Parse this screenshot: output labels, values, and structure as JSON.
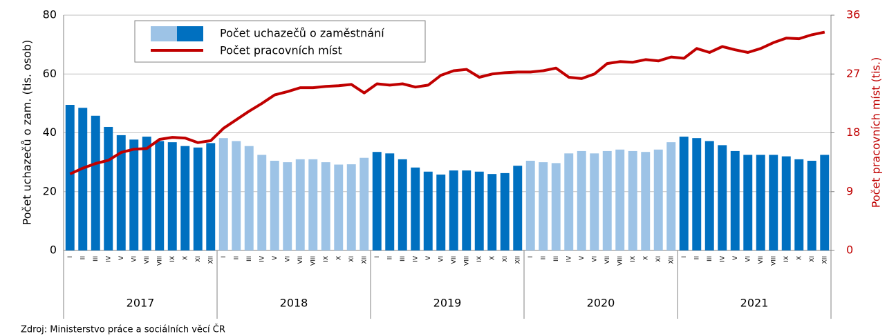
{
  "chart_data": {
    "type": "bar_line",
    "ylabel": "Počet uchazečů o zam. (tis. osob)",
    "y2label": "Počet pracovních míst (tis.)",
    "source": "Zdroj: Ministerstvo práce a sociálních věcí ČR",
    "categories": [
      "I",
      "II",
      "III",
      "IV",
      "V",
      "VI",
      "VII",
      "VIII",
      "IX",
      "X",
      "XI",
      "XII",
      "I",
      "II",
      "III",
      "IV",
      "V",
      "VI",
      "VII",
      "VIII",
      "IX",
      "X",
      "XI",
      "XII",
      "I",
      "II",
      "III",
      "IV",
      "V",
      "VI",
      "VII",
      "VIII",
      "IX",
      "X",
      "XI",
      "XII",
      "I",
      "II",
      "III",
      "IV",
      "V",
      "VI",
      "VII",
      "VIII",
      "IX",
      "X",
      "XI",
      "XII",
      "I",
      "II",
      "III",
      "IV",
      "V",
      "VI",
      "VII",
      "VIII",
      "IX",
      "X",
      "XI",
      "XII"
    ],
    "groups": [
      "2017",
      "2018",
      "2019",
      "2020",
      "2021"
    ],
    "series": [
      {
        "name": "Počet uchazečů o zaměstnání",
        "type": "bar",
        "color": "#0070c0",
        "alt_color": "#9dc3e6",
        "values": [
          49.5,
          48.5,
          45.8,
          42,
          39.2,
          37.7,
          38.7,
          37.2,
          36.8,
          35.5,
          35,
          36.5,
          38.2,
          37.2,
          35.5,
          32.5,
          30.5,
          30,
          31,
          31,
          30,
          29.2,
          29.3,
          31.5,
          33.5,
          33,
          31,
          28.2,
          26.8,
          25.8,
          27.2,
          27.2,
          26.8,
          26,
          26.3,
          28.8,
          30.5,
          30,
          29.7,
          33,
          33.8,
          33,
          33.8,
          34.3,
          33.8,
          33.5,
          34.3,
          36.8,
          38.7,
          38.2,
          37.2,
          35.8,
          33.8,
          32.5,
          32.5,
          32.5,
          32,
          31,
          30.5,
          32.5
        ]
      },
      {
        "name": "Počet pracovních míst",
        "type": "line",
        "color": "#c00000",
        "axis": "y2",
        "values": [
          11.7,
          12.6,
          13.3,
          13.8,
          15,
          15.5,
          15.6,
          17,
          17.3,
          17.2,
          16.5,
          16.8,
          18.7,
          20,
          21.3,
          22.5,
          23.8,
          24.3,
          24.9,
          24.9,
          25.1,
          25.2,
          25.4,
          24.1,
          25.5,
          25.3,
          25.5,
          25,
          25.3,
          26.8,
          27.5,
          27.7,
          26.5,
          27,
          27.2,
          27.3,
          27.3,
          27.5,
          27.9,
          26.5,
          26.3,
          27,
          28.6,
          28.9,
          28.8,
          29.2,
          29,
          29.6,
          29.4,
          30.9,
          30.3,
          31.2,
          30.7,
          30.3,
          30.9,
          31.8,
          32.5,
          32.4,
          33,
          33.4
        ]
      }
    ],
    "ylim": [
      0,
      80
    ],
    "yticks": [
      0,
      20,
      40,
      60,
      80
    ],
    "y2lim": [
      0,
      36
    ],
    "y2ticks": [
      0,
      9,
      18,
      27,
      36
    ],
    "grid": true
  }
}
